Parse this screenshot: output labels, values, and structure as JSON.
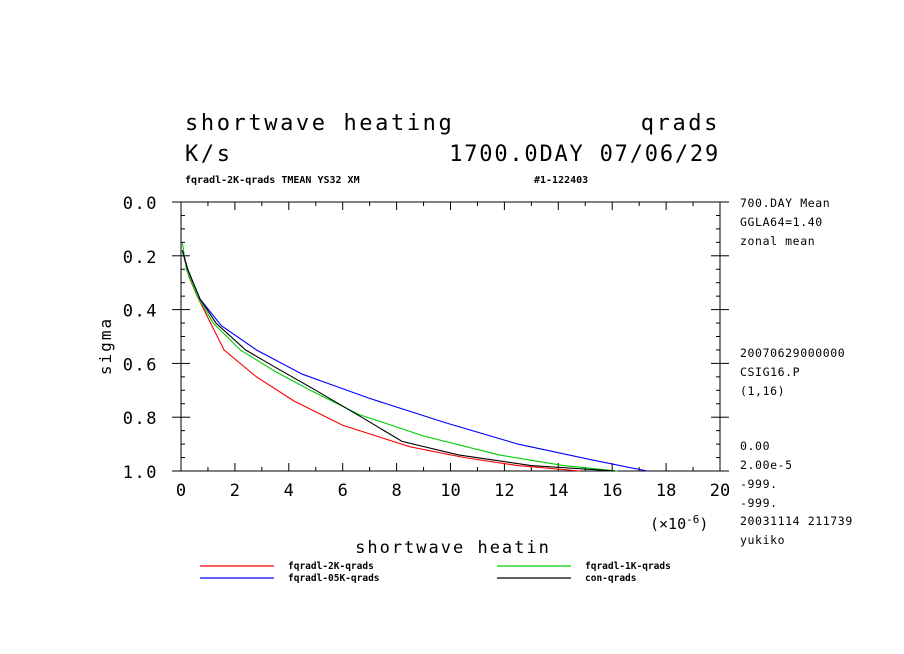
{
  "header": {
    "title_left": "shortwave heating",
    "title_right": "qrads",
    "units": "K/s",
    "time": "1700.0DAY 07/06/29",
    "subtitle": "fqradl-2K-qrads TMEAN YS32 XM",
    "run_id": "#1-122403"
  },
  "side_info": {
    "block1": [
      "700.DAY Mean",
      "GGLA64=1.40",
      "zonal mean"
    ],
    "block2": [
      "20070629000000",
      "CSIG16.P",
      "(1,16)"
    ],
    "block3": [
      "0.00",
      "2.00e-5",
      "-999.",
      "-999."
    ],
    "block4": [
      "20031114 211739",
      "yukiko"
    ]
  },
  "chart_data": {
    "type": "line",
    "xlabel": "shortwave heatin",
    "ylabel": "sigma",
    "x_scale_note": "(×10",
    "x_scale_exp": "-6",
    "x_scale_close": ")",
    "xlim": [
      0,
      20
    ],
    "ylim": [
      0.0,
      1.0
    ],
    "y_inverted": true,
    "x_ticks": [
      0,
      2,
      4,
      6,
      8,
      10,
      12,
      14,
      16,
      18,
      20
    ],
    "x_tick_labels": [
      "0",
      "2",
      "4",
      "6",
      "8",
      "10",
      "12",
      "14",
      "16",
      "18",
      "20"
    ],
    "y_ticks": [
      0.0,
      0.2,
      0.4,
      0.6,
      0.8,
      1.0
    ],
    "y_tick_labels": [
      "0.0",
      "0.2",
      "0.4",
      "0.6",
      "0.8",
      "1.0"
    ],
    "series": [
      {
        "name": "fqradl-2K-qrads",
        "color": "#ff0000",
        "points": [
          [
            0.1,
            0.2
          ],
          [
            0.3,
            0.28
          ],
          [
            0.6,
            0.35
          ],
          [
            1.0,
            0.43
          ],
          [
            1.6,
            0.55
          ],
          [
            2.8,
            0.65
          ],
          [
            4.2,
            0.74
          ],
          [
            6.0,
            0.83
          ],
          [
            8.5,
            0.91
          ],
          [
            10.5,
            0.95
          ],
          [
            12.5,
            0.98
          ],
          [
            14.8,
            1.0
          ]
        ]
      },
      {
        "name": "fqradl-1K-qrads",
        "color": "#00cc00",
        "points": [
          [
            0.05,
            0.15
          ],
          [
            0.2,
            0.25
          ],
          [
            0.6,
            0.35
          ],
          [
            1.2,
            0.45
          ],
          [
            2.2,
            0.55
          ],
          [
            3.5,
            0.63
          ],
          [
            4.8,
            0.7
          ],
          [
            6.6,
            0.79
          ],
          [
            9.0,
            0.87
          ],
          [
            11.8,
            0.94
          ],
          [
            14.2,
            0.98
          ],
          [
            16.2,
            1.0
          ]
        ]
      },
      {
        "name": "fqradl-05K-qrads",
        "color": "#0000ff",
        "points": [
          [
            0.05,
            0.18
          ],
          [
            0.25,
            0.25
          ],
          [
            0.7,
            0.36
          ],
          [
            1.5,
            0.46
          ],
          [
            2.8,
            0.55
          ],
          [
            4.5,
            0.64
          ],
          [
            7.0,
            0.73
          ],
          [
            9.8,
            0.82
          ],
          [
            12.5,
            0.9
          ],
          [
            15.3,
            0.96
          ],
          [
            17.3,
            1.0
          ]
        ]
      },
      {
        "name": "con-qrads",
        "color": "#000000",
        "points": [
          [
            0.05,
            0.18
          ],
          [
            0.25,
            0.25
          ],
          [
            0.7,
            0.36
          ],
          [
            1.3,
            0.45
          ],
          [
            2.4,
            0.55
          ],
          [
            3.6,
            0.62
          ],
          [
            5.0,
            0.7
          ],
          [
            6.7,
            0.8
          ],
          [
            8.2,
            0.89
          ],
          [
            10.3,
            0.94
          ],
          [
            13.0,
            0.98
          ],
          [
            16.1,
            1.0
          ]
        ]
      }
    ]
  }
}
